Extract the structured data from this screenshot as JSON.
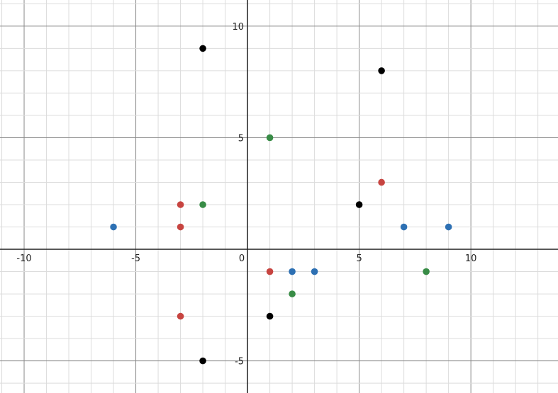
{
  "chart_data": {
    "type": "scatter",
    "title": "",
    "xlabel": "",
    "ylabel": "",
    "xlim": [
      -11.08,
      13.9
    ],
    "ylim": [
      -6.44,
      11.17
    ],
    "grid": true,
    "minor_grid_step": 1,
    "major_grid_step": 5,
    "x_tick_labels": [
      "-10",
      "-5",
      "0",
      "5",
      "10"
    ],
    "x_tick_values": [
      -10,
      -5,
      0,
      5,
      10
    ],
    "y_tick_labels": [
      "10",
      "5",
      "-5"
    ],
    "y_tick_values": [
      10,
      5,
      -5
    ],
    "series": [
      {
        "color": "#000000",
        "points": [
          [
            -2,
            9
          ],
          [
            6,
            8
          ],
          [
            5,
            2
          ],
          [
            1,
            -3
          ],
          [
            -2,
            -5
          ]
        ]
      },
      {
        "color": "#c74440",
        "points": [
          [
            -3,
            2
          ],
          [
            -3,
            1
          ],
          [
            6,
            3
          ],
          [
            1,
            -1
          ],
          [
            -3,
            -3
          ]
        ]
      },
      {
        "color": "#388c46",
        "points": [
          [
            1,
            5
          ],
          [
            -2,
            2
          ],
          [
            8,
            -1
          ],
          [
            2,
            -2
          ]
        ]
      },
      {
        "color": "#2d70b3",
        "points": [
          [
            -6,
            1
          ],
          [
            7,
            1
          ],
          [
            9,
            1
          ],
          [
            2,
            -1
          ],
          [
            3,
            -1
          ]
        ]
      }
    ]
  }
}
